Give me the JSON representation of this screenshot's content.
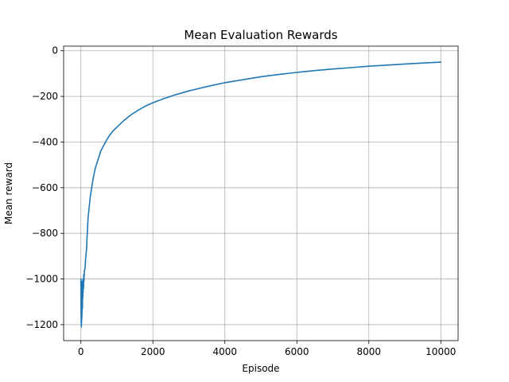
{
  "chart_data": {
    "type": "line",
    "title": "Mean Evaluation Rewards",
    "xlabel": "Episode",
    "ylabel": "Mean reward",
    "xlim": [
      -480,
      10480
    ],
    "ylim": [
      -1270,
      20
    ],
    "xticks": [
      0,
      2000,
      4000,
      6000,
      8000,
      10000
    ],
    "yticks": [
      0,
      -200,
      -400,
      -600,
      -800,
      -1000,
      -1200
    ],
    "xtick_labels": [
      "0",
      "2000",
      "4000",
      "6000",
      "8000",
      "10000"
    ],
    "ytick_labels": [
      "0",
      "−200",
      "−400",
      "−600",
      "−800",
      "−1000",
      "−1200"
    ],
    "grid": true,
    "legend": "none",
    "series": [
      {
        "color": "#1f77b4",
        "x": [
          0,
          3,
          5,
          8,
          10,
          12,
          15,
          18,
          20,
          22,
          25,
          28,
          30,
          33,
          35,
          38,
          40,
          43,
          45,
          48,
          50,
          55,
          58,
          62,
          66,
          70,
          75,
          80,
          85,
          90,
          100,
          110,
          120,
          130,
          140,
          150,
          160,
          170,
          180,
          190,
          200,
          220,
          240,
          260,
          280,
          300,
          320,
          340,
          360,
          380,
          400,
          450,
          500,
          550,
          600,
          700,
          800,
          900,
          1000,
          1200,
          1400,
          1600,
          1800,
          2000,
          2300,
          2600,
          3000,
          3500,
          4000,
          4500,
          5000,
          5500,
          6000,
          6500,
          7000,
          7500,
          8000,
          8500,
          9000,
          9500,
          10000
        ],
        "y": [
          -1000,
          -1150,
          -1050,
          -1190,
          -1080,
          -1210,
          -1120,
          -1200,
          -1100,
          -1180,
          -1060,
          -1170,
          -1040,
          -1140,
          -1010,
          -1110,
          -1060,
          -1130,
          -1030,
          -1090,
          -1050,
          -1080,
          -1000,
          -1060,
          -1020,
          -1000,
          -1040,
          -980,
          -1010,
          -990,
          -960,
          -960,
          -940,
          -910,
          -900,
          -880,
          -860,
          -820,
          -790,
          -760,
          -730,
          -700,
          -670,
          -640,
          -620,
          -600,
          -580,
          -560,
          -545,
          -530,
          -515,
          -490,
          -465,
          -440,
          -425,
          -395,
          -370,
          -350,
          -335,
          -305,
          -280,
          -260,
          -242,
          -228,
          -210,
          -194,
          -176,
          -157,
          -140,
          -127,
          -114,
          -104,
          -95,
          -87,
          -80,
          -74,
          -68,
          -63,
          -58,
          -54,
          -50
        ]
      }
    ]
  }
}
